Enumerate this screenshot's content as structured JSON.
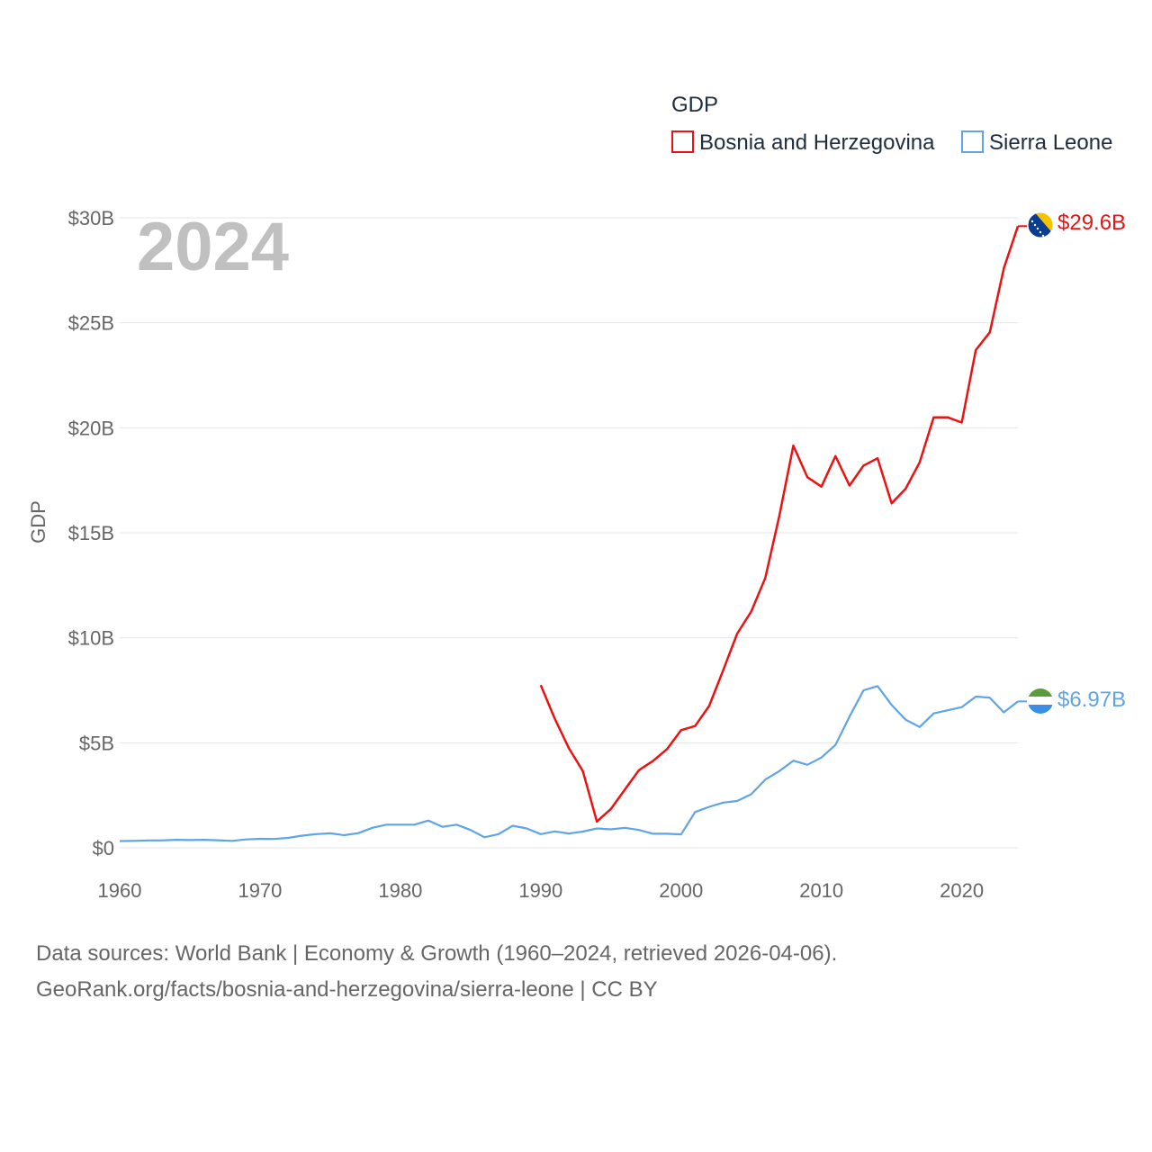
{
  "chart_data": {
    "type": "line",
    "title": "GDP",
    "ylabel": "GDP",
    "xlabel": "",
    "year_label": "2024",
    "xlim": [
      1960,
      2024
    ],
    "ylim": [
      0,
      30
    ],
    "x_ticks": [
      1960,
      1970,
      1980,
      1990,
      2000,
      2010,
      2020
    ],
    "x_tick_labels": [
      "1960",
      "1970",
      "1980",
      "1990",
      "2000",
      "2010",
      "2020"
    ],
    "y_ticks": [
      0,
      5,
      10,
      15,
      20,
      25,
      30
    ],
    "y_tick_labels": [
      "$0",
      "$5B",
      "$10B",
      "$15B",
      "$20B",
      "$25B",
      "$30B"
    ],
    "grid": true,
    "legend_position": "top-right",
    "series": [
      {
        "name": "Bosnia and Herzegovina",
        "color": "#ee1111",
        "end_label": "$29.6B",
        "flag": "bosnia-flag",
        "x": [
          1990,
          1991,
          1992,
          1993,
          1994,
          1995,
          1996,
          1997,
          1998,
          1999,
          2000,
          2001,
          2002,
          2003,
          2004,
          2005,
          2006,
          2007,
          2008,
          2009,
          2010,
          2011,
          2012,
          2013,
          2014,
          2015,
          2016,
          2017,
          2018,
          2019,
          2020,
          2021,
          2022,
          2023,
          2024
        ],
        "values": [
          7.75,
          6.15,
          4.75,
          3.65,
          1.25,
          1.85,
          2.78,
          3.7,
          4.14,
          4.7,
          5.6,
          5.8,
          6.75,
          8.45,
          10.2,
          11.25,
          12.85,
          15.8,
          19.15,
          17.65,
          17.2,
          18.65,
          17.25,
          18.2,
          18.55,
          16.4,
          17.1,
          18.35,
          20.5,
          20.5,
          20.25,
          23.7,
          24.55,
          27.6,
          29.6
        ]
      },
      {
        "name": "Sierra Leone",
        "color": "#5ea4e6",
        "end_label": "$6.97B",
        "flag": "sierra-leone-flag",
        "x": [
          1960,
          1961,
          1962,
          1963,
          1964,
          1965,
          1966,
          1967,
          1968,
          1969,
          1970,
          1971,
          1972,
          1973,
          1974,
          1975,
          1976,
          1977,
          1978,
          1979,
          1980,
          1981,
          1982,
          1983,
          1984,
          1985,
          1986,
          1987,
          1988,
          1989,
          1990,
          1991,
          1992,
          1993,
          1994,
          1995,
          1996,
          1997,
          1998,
          1999,
          2000,
          2001,
          2002,
          2003,
          2004,
          2005,
          2006,
          2007,
          2008,
          2009,
          2010,
          2011,
          2012,
          2013,
          2014,
          2015,
          2016,
          2017,
          2018,
          2019,
          2020,
          2021,
          2022,
          2023,
          2024
        ],
        "values": [
          0.32,
          0.33,
          0.35,
          0.35,
          0.38,
          0.37,
          0.38,
          0.36,
          0.33,
          0.4,
          0.43,
          0.42,
          0.47,
          0.58,
          0.65,
          0.69,
          0.6,
          0.7,
          0.95,
          1.1,
          1.1,
          1.1,
          1.3,
          1.0,
          1.1,
          0.85,
          0.5,
          0.65,
          1.05,
          0.92,
          0.65,
          0.78,
          0.68,
          0.77,
          0.92,
          0.88,
          0.95,
          0.85,
          0.67,
          0.67,
          0.64,
          1.7,
          1.95,
          2.15,
          2.23,
          2.55,
          3.25,
          3.65,
          4.15,
          3.95,
          4.3,
          4.9,
          6.25,
          7.5,
          7.7,
          6.8,
          6.1,
          5.75,
          6.4,
          6.55,
          6.7,
          7.2,
          7.15,
          6.45,
          6.97
        ]
      }
    ]
  },
  "source": {
    "line1": "Data sources: World Bank | Economy & Growth (1960–2024, retrieved 2026-04-06).",
    "line2": "GeoRank.org/facts/bosnia-and-herzegovina/sierra-leone | CC BY"
  }
}
